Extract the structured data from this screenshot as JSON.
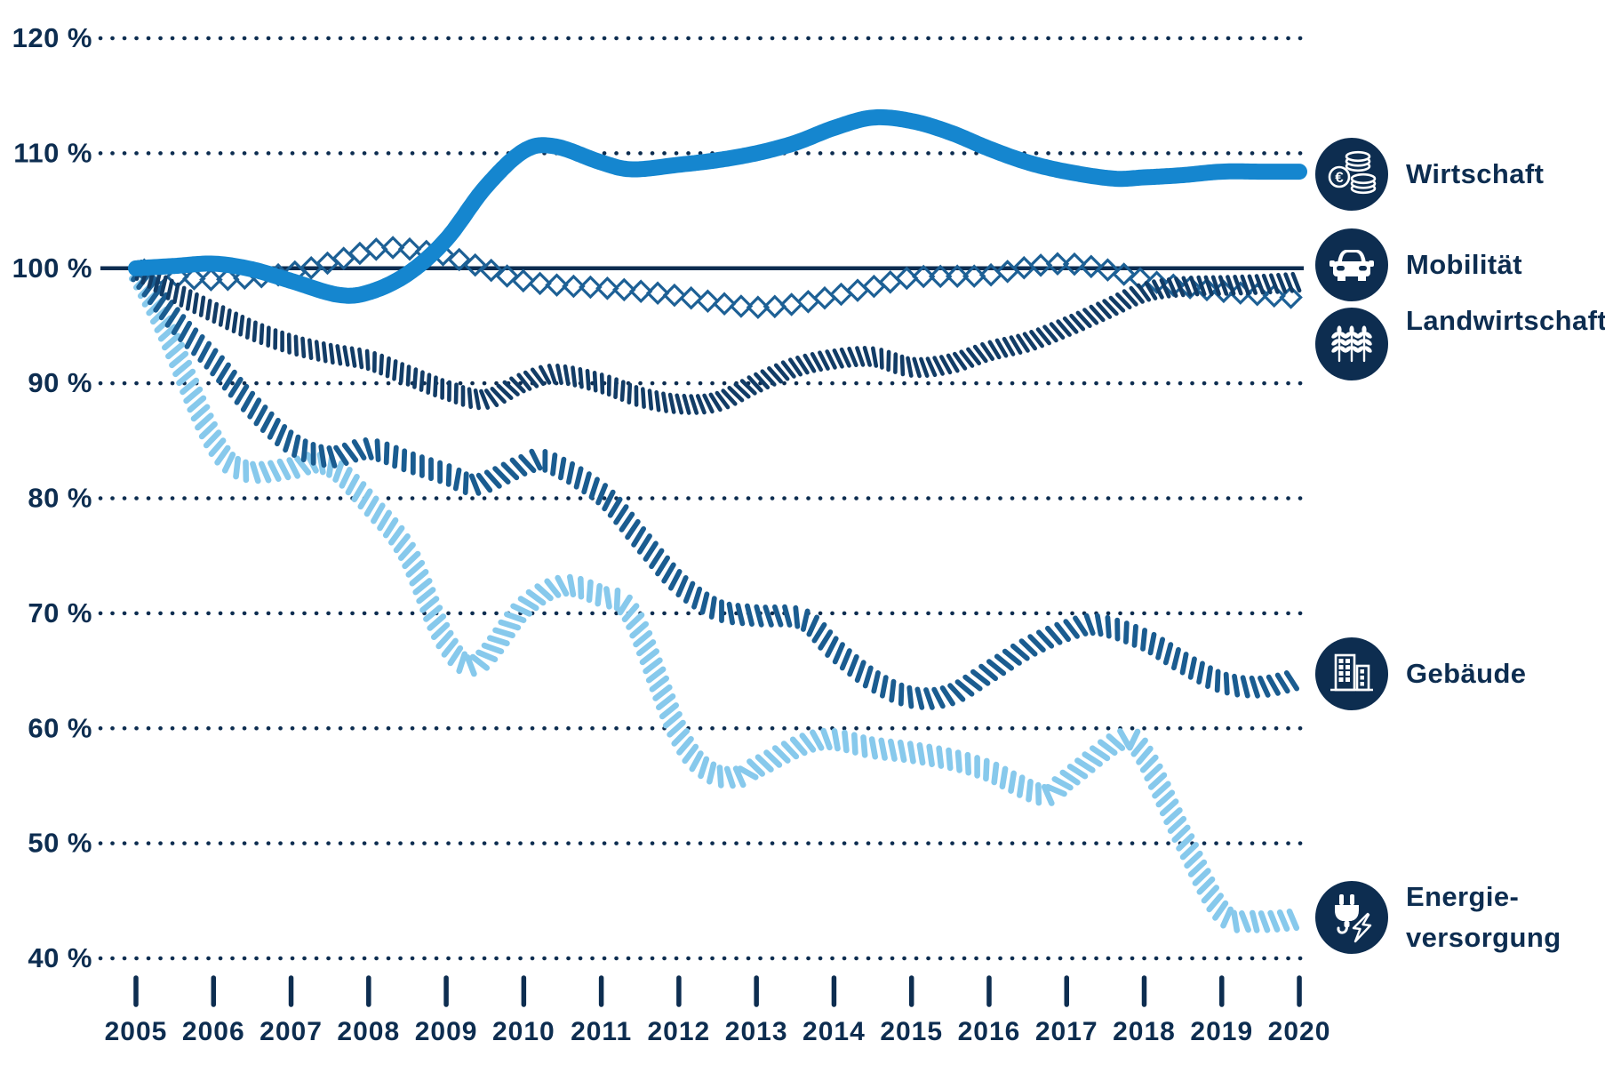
{
  "colors": {
    "background": "#ffffff",
    "axis": "#0d2d50",
    "text": "#0d2d50",
    "wirtschaft": "#1586cf",
    "mobilitaet": "#1d6095",
    "landwirtschaft": "#123c66",
    "gebaeude": "#1a5c90",
    "energieversorgung": "#87c9ec"
  },
  "y_axis": {
    "unit": "%",
    "labels": [
      "120 %",
      "110 %",
      "100 %",
      "90 %",
      "80 %",
      "70 %",
      "60 %",
      "50 %",
      "40 %"
    ],
    "values": [
      120,
      110,
      100,
      90,
      80,
      70,
      60,
      50,
      40
    ],
    "baseline_value": 100
  },
  "x_axis": {
    "years": [
      "2005",
      "2006",
      "2007",
      "2008",
      "2009",
      "2010",
      "2011",
      "2012",
      "2013",
      "2014",
      "2015",
      "2016",
      "2017",
      "2018",
      "2019",
      "2020"
    ]
  },
  "legend": [
    {
      "id": "wirtschaft",
      "label": "Wirtschaft",
      "icon": "coins-euro-icon"
    },
    {
      "id": "mobilitaet",
      "label": "Mobilität",
      "icon": "car-icon"
    },
    {
      "id": "landwirtschaft",
      "label": "Landwirtschaft",
      "icon": "wheat-icon"
    },
    {
      "id": "gebaeude",
      "label": "Gebäude",
      "icon": "building-icon"
    },
    {
      "id": "energieversorgung",
      "label": "Energie-versorgung",
      "label_lines": [
        "Energie-",
        "versorgung"
      ],
      "icon": "power-plug-icon"
    }
  ],
  "chart_data": {
    "type": "line",
    "title": "",
    "xlabel": "",
    "ylabel": "%",
    "x_range": [
      2005,
      2020
    ],
    "ylim": [
      40,
      120
    ],
    "baseline": 100,
    "grid": "dotted-horizontal",
    "grid_values": [
      120,
      110,
      100,
      90,
      80,
      70,
      60,
      50,
      40
    ],
    "legend_position": "right",
    "series": [
      {
        "name": "Energieversorgung",
        "style": "hatch-light",
        "color": "#87c9ec",
        "points": [
          [
            2005,
            100
          ],
          [
            2005.4,
            94.5
          ],
          [
            2006,
            85.0
          ],
          [
            2006.4,
            82.4
          ],
          [
            2007,
            82.6
          ],
          [
            2007.3,
            83.1
          ],
          [
            2007.6,
            82.4
          ],
          [
            2008,
            79.6
          ],
          [
            2008.5,
            75.3
          ],
          [
            2009,
            67.5
          ],
          [
            2009.4,
            65.6
          ],
          [
            2010,
            70.5
          ],
          [
            2010.5,
            72.4
          ],
          [
            2011,
            71.5
          ],
          [
            2011.4,
            69.8
          ],
          [
            2012,
            59.5
          ],
          [
            2012.4,
            56.2
          ],
          [
            2012.8,
            55.8
          ],
          [
            2013,
            56.6
          ],
          [
            2013.8,
            59.0
          ],
          [
            2014.5,
            58.3
          ],
          [
            2015,
            57.9
          ],
          [
            2015.5,
            57.3
          ],
          [
            2016,
            56.3
          ],
          [
            2016.7,
            54.2
          ],
          [
            2017,
            55.5
          ],
          [
            2017.7,
            59.0
          ],
          [
            2018,
            57.7
          ],
          [
            2018.5,
            50.5
          ],
          [
            2019,
            44.0
          ],
          [
            2019.4,
            43.2
          ],
          [
            2020,
            43.4
          ]
        ]
      },
      {
        "name": "Gebäude",
        "style": "hatch",
        "color": "#1a5c90",
        "points": [
          [
            2005,
            100
          ],
          [
            2005.5,
            95.5
          ],
          [
            2006,
            91.9
          ],
          [
            2006.5,
            88.0
          ],
          [
            2007,
            84.8
          ],
          [
            2007.5,
            83.6
          ],
          [
            2008,
            84.3
          ],
          [
            2008.5,
            83.2
          ],
          [
            2009,
            82.1
          ],
          [
            2009.4,
            81.2
          ],
          [
            2010,
            82.9
          ],
          [
            2010.3,
            83.2
          ],
          [
            2011,
            80.4
          ],
          [
            2011.5,
            76.5
          ],
          [
            2012,
            72.6
          ],
          [
            2012.5,
            70.3
          ],
          [
            2013,
            69.8
          ],
          [
            2013.6,
            69.5
          ],
          [
            2014,
            66.9
          ],
          [
            2014.5,
            64.2
          ],
          [
            2015,
            62.7
          ],
          [
            2015.5,
            62.9
          ],
          [
            2016,
            64.9
          ],
          [
            2016.5,
            67.0
          ],
          [
            2017,
            68.5
          ],
          [
            2017.4,
            69.0
          ],
          [
            2018,
            67.7
          ],
          [
            2018.5,
            65.7
          ],
          [
            2019,
            64.0
          ],
          [
            2019.5,
            63.6
          ],
          [
            2020,
            64.3
          ]
        ]
      },
      {
        "name": "Mobilität",
        "style": "diamond-chain",
        "color": "#1d6095",
        "points": [
          [
            2005,
            100
          ],
          [
            2005.5,
            99.3
          ],
          [
            2006,
            99.0
          ],
          [
            2006.5,
            99.2
          ],
          [
            2007,
            99.6
          ],
          [
            2007.5,
            100.5
          ],
          [
            2008,
            101.5
          ],
          [
            2008.3,
            101.8
          ],
          [
            2008.7,
            101.5
          ],
          [
            2009,
            101.1
          ],
          [
            2009.5,
            100.0
          ],
          [
            2010,
            98.9
          ],
          [
            2010.5,
            98.5
          ],
          [
            2011,
            98.3
          ],
          [
            2011.5,
            98.0
          ],
          [
            2012,
            97.6
          ],
          [
            2012.5,
            97.0
          ],
          [
            2013,
            96.6
          ],
          [
            2013.5,
            96.9
          ],
          [
            2014,
            97.6
          ],
          [
            2014.5,
            98.4
          ],
          [
            2015,
            99.2
          ],
          [
            2015.5,
            99.3
          ],
          [
            2016,
            99.4
          ],
          [
            2016.5,
            100.1
          ],
          [
            2017,
            100.4
          ],
          [
            2017.5,
            99.9
          ],
          [
            2018,
            99.0
          ],
          [
            2018.5,
            98.4
          ],
          [
            2019,
            98.0
          ],
          [
            2019.5,
            97.7
          ],
          [
            2020,
            97.4
          ]
        ]
      },
      {
        "name": "Landwirtschaft",
        "style": "hatch-dense",
        "color": "#123c66",
        "points": [
          [
            2005,
            100
          ],
          [
            2005.5,
            97.9
          ],
          [
            2006,
            96.2
          ],
          [
            2006.5,
            94.6
          ],
          [
            2007,
            93.4
          ],
          [
            2007.5,
            92.6
          ],
          [
            2008,
            92.0
          ],
          [
            2008.5,
            90.7
          ],
          [
            2009,
            89.4
          ],
          [
            2009.5,
            88.6
          ],
          [
            2010,
            90.1
          ],
          [
            2010.4,
            90.8
          ],
          [
            2011,
            90.0
          ],
          [
            2011.5,
            88.8
          ],
          [
            2012,
            88.2
          ],
          [
            2012.5,
            88.4
          ],
          [
            2013,
            90.0
          ],
          [
            2013.5,
            91.4
          ],
          [
            2014,
            92.1
          ],
          [
            2014.5,
            92.3
          ],
          [
            2015,
            91.4
          ],
          [
            2015.5,
            91.7
          ],
          [
            2016,
            92.8
          ],
          [
            2016.5,
            93.6
          ],
          [
            2017,
            94.9
          ],
          [
            2017.5,
            96.4
          ],
          [
            2018,
            97.9
          ],
          [
            2018.5,
            98.4
          ],
          [
            2019,
            98.5
          ],
          [
            2019.5,
            98.6
          ],
          [
            2020,
            98.8
          ]
        ]
      },
      {
        "name": "Wirtschaft",
        "style": "solid-thick",
        "color": "#1586cf",
        "points": [
          [
            2005,
            100
          ],
          [
            2005.5,
            100.2
          ],
          [
            2006,
            100.4
          ],
          [
            2006.5,
            99.9
          ],
          [
            2007,
            98.9
          ],
          [
            2007.6,
            97.7
          ],
          [
            2008,
            97.9
          ],
          [
            2008.5,
            99.5
          ],
          [
            2009,
            102.5
          ],
          [
            2009.5,
            107.0
          ],
          [
            2010,
            110.2
          ],
          [
            2010.4,
            110.6
          ],
          [
            2011,
            109.2
          ],
          [
            2011.4,
            108.6
          ],
          [
            2012,
            109.0
          ],
          [
            2012.5,
            109.4
          ],
          [
            2013,
            110.0
          ],
          [
            2013.5,
            110.9
          ],
          [
            2014,
            112.2
          ],
          [
            2014.5,
            113.1
          ],
          [
            2015,
            112.8
          ],
          [
            2015.5,
            111.8
          ],
          [
            2016,
            110.4
          ],
          [
            2016.5,
            109.2
          ],
          [
            2017,
            108.4
          ],
          [
            2017.6,
            107.8
          ],
          [
            2018,
            107.9
          ],
          [
            2018.5,
            108.1
          ],
          [
            2019,
            108.4
          ],
          [
            2019.5,
            108.4
          ],
          [
            2020,
            108.4
          ]
        ]
      }
    ]
  }
}
